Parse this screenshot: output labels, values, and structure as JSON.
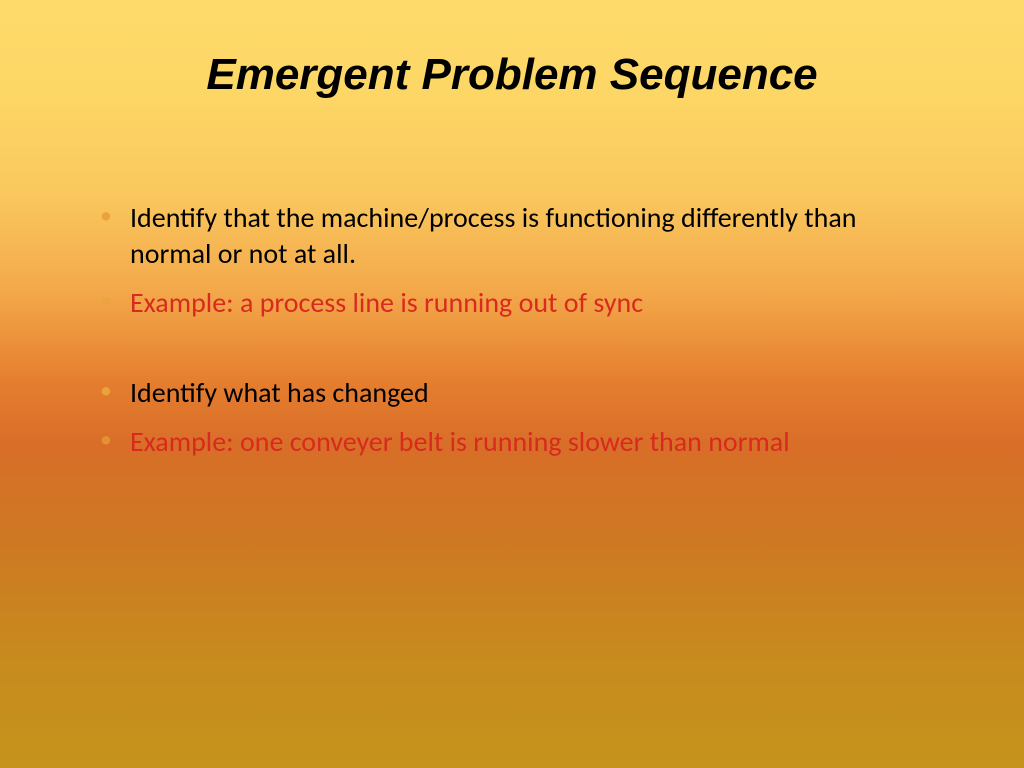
{
  "slide": {
    "title": "Emergent Problem Sequence",
    "background": {
      "gradient_stops": [
        "#fdda6a",
        "#fdd766",
        "#fac85e",
        "#f3a84a",
        "#e57d2f",
        "#d86e28",
        "#cd7a22",
        "#c88a1e",
        "#c5941c"
      ],
      "direction": "vertical"
    },
    "title_style": {
      "fontsize": 44,
      "weight": "bold",
      "style": "italic",
      "color": "#000000",
      "align": "center"
    },
    "body_fontsize": 28,
    "bullet_marker_color": "#e8a43a",
    "text_color_normal": "#000000",
    "text_color_example": "#d82a1e",
    "bullets": [
      {
        "text": "Identify that the machine/process is functioning differently than normal or not at all.",
        "color": "#000000",
        "kind": "normal"
      },
      {
        "text": "Example: a process line is running out of sync",
        "color": "#d82a1e",
        "kind": "example"
      },
      {
        "text": "Identify what has changed",
        "color": "#000000",
        "kind": "normal"
      },
      {
        "text": "Example: one conveyer belt is running slower than normal",
        "color": "#d82a1e",
        "kind": "example"
      }
    ]
  }
}
